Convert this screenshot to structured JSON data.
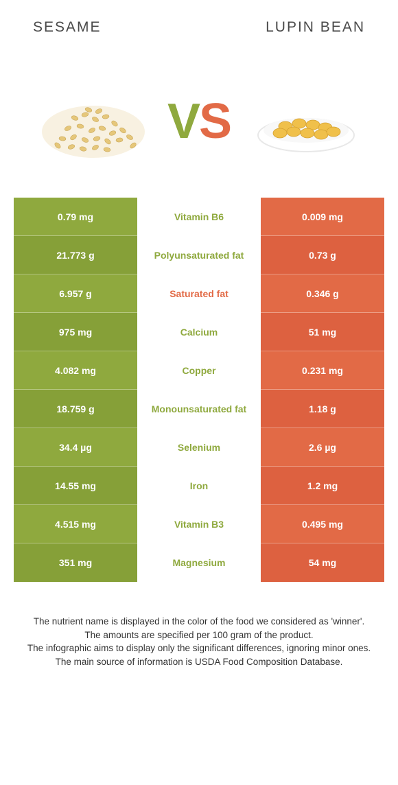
{
  "colors": {
    "left": "#8fa93e",
    "right": "#e26a46",
    "left_alt": "#86a038",
    "right_alt": "#dd6140",
    "vs_left": "#8fa93e",
    "vs_right": "#e26a46"
  },
  "header": {
    "left": "SESAME",
    "right": "LUPIN BEAN"
  },
  "vs": {
    "v": "V",
    "s": "S"
  },
  "rows": [
    {
      "left": "0.79 mg",
      "mid": "Vitamin B6",
      "right": "0.009 mg",
      "winner": "left"
    },
    {
      "left": "21.773 g",
      "mid": "Polyunsaturated fat",
      "right": "0.73 g",
      "winner": "left"
    },
    {
      "left": "6.957 g",
      "mid": "Saturated fat",
      "right": "0.346 g",
      "winner": "right"
    },
    {
      "left": "975 mg",
      "mid": "Calcium",
      "right": "51 mg",
      "winner": "left"
    },
    {
      "left": "4.082 mg",
      "mid": "Copper",
      "right": "0.231 mg",
      "winner": "left"
    },
    {
      "left": "18.759 g",
      "mid": "Monounsaturated fat",
      "right": "1.18 g",
      "winner": "left"
    },
    {
      "left": "34.4 µg",
      "mid": "Selenium",
      "right": "2.6 µg",
      "winner": "left"
    },
    {
      "left": "14.55 mg",
      "mid": "Iron",
      "right": "1.2 mg",
      "winner": "left"
    },
    {
      "left": "4.515 mg",
      "mid": "Vitamin B3",
      "right": "0.495 mg",
      "winner": "left"
    },
    {
      "left": "351 mg",
      "mid": "Magnesium",
      "right": "54 mg",
      "winner": "left"
    }
  ],
  "footer": {
    "l1": "The nutrient name is displayed in the color of the food we considered as 'winner'.",
    "l2": "The amounts are specified per 100 gram of the product.",
    "l3": "The infographic aims to display only the significant differences, ignoring minor ones.",
    "l4": "The main source of information is USDA Food Composition Database."
  }
}
